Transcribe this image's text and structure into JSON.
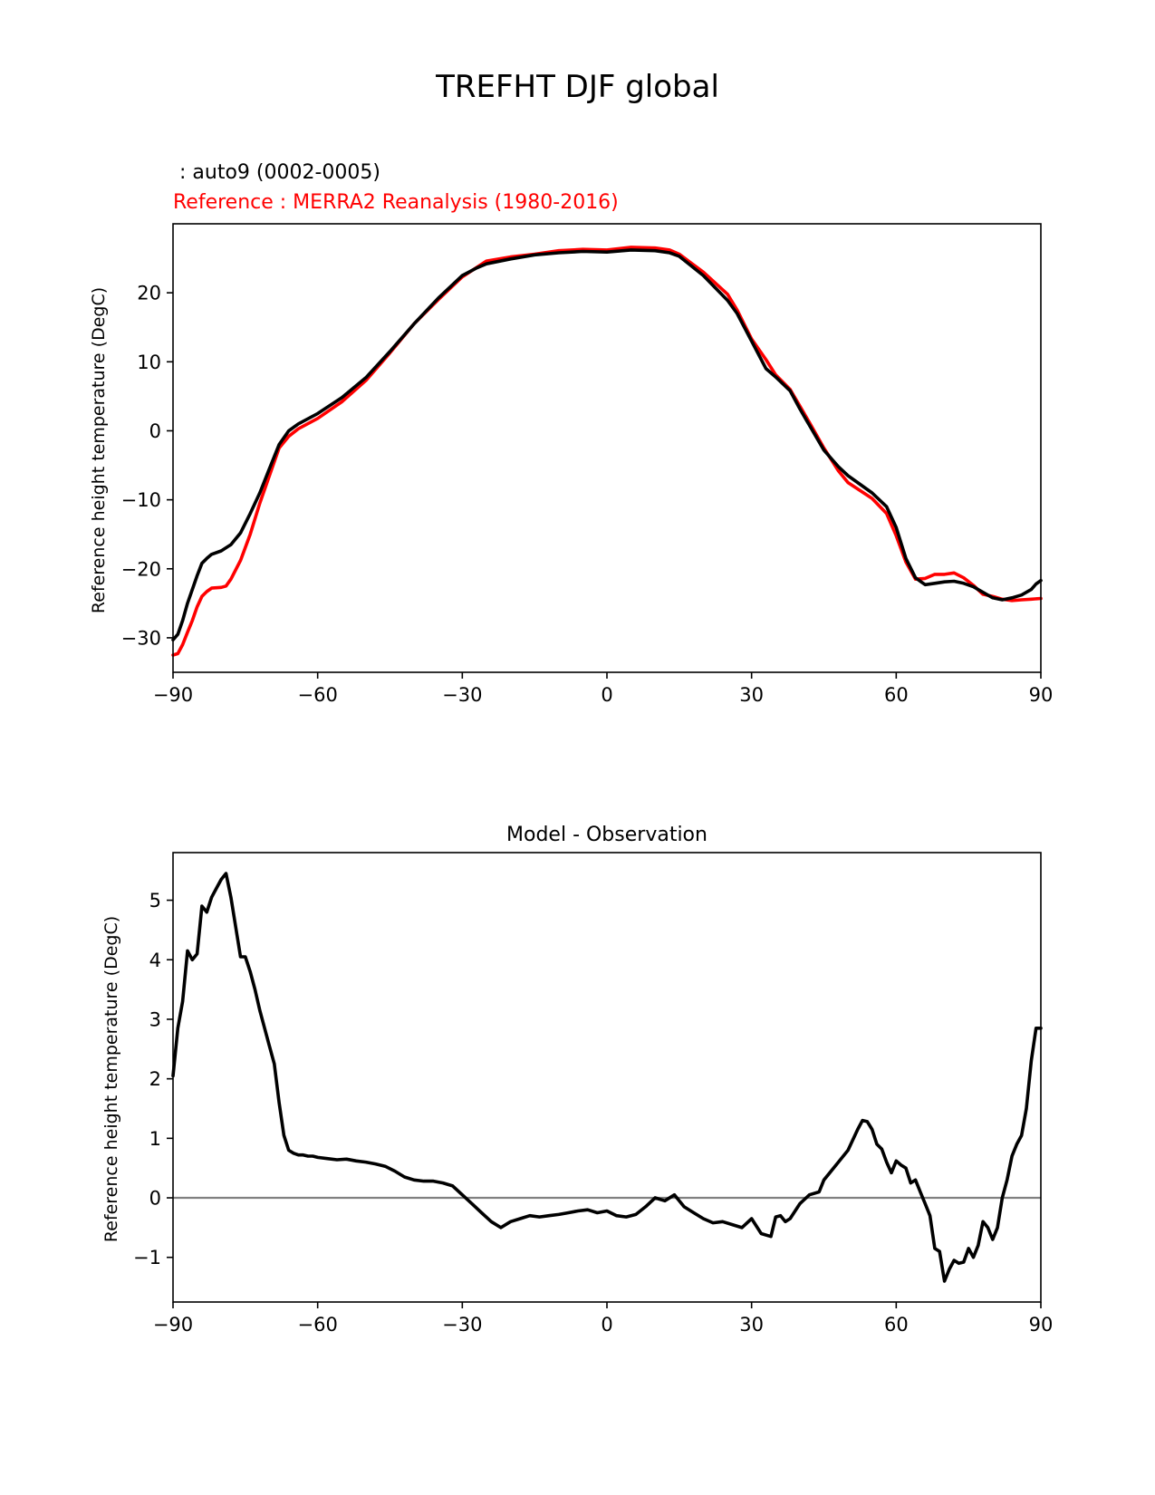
{
  "figure_title": "TREFHT DJF global",
  "colors": {
    "model": "#000000",
    "reference": "#ff0000",
    "zero_line": "#808080"
  },
  "chart_data": [
    {
      "type": "line",
      "title": "",
      "subtitle_model": " : auto9 (0002-0005)",
      "subtitle_reference": "Reference : MERRA2 Reanalysis (1980-2016)",
      "xlabel": "",
      "ylabel": "Reference height temperature (DegC)",
      "xlim": [
        -90,
        90
      ],
      "ylim": [
        -35,
        30
      ],
      "xticks": [
        -90,
        -60,
        -30,
        0,
        30,
        60,
        90
      ],
      "xtick_labels": [
        "−90",
        "−60",
        "−30",
        "0",
        "30",
        "60",
        "90"
      ],
      "yticks": [
        -30,
        -20,
        -10,
        0,
        10,
        20
      ],
      "ytick_labels": [
        "−30",
        "−20",
        "−10",
        "0",
        "10",
        "20"
      ],
      "grid": false,
      "series": [
        {
          "name": "auto9 (0002-0005)",
          "x": [
            -90,
            -89,
            -88,
            -87,
            -86,
            -85,
            -84,
            -83,
            -82,
            -80,
            -78,
            -76,
            -74,
            -72,
            -70,
            -68,
            -66,
            -64,
            -60,
            -55,
            -50,
            -45,
            -40,
            -35,
            -30,
            -27,
            -25,
            -20,
            -15,
            -10,
            -5,
            0,
            5,
            10,
            13,
            15,
            20,
            25,
            27,
            30,
            33,
            35,
            38,
            40,
            42,
            45,
            48,
            50,
            55,
            58,
            60,
            62,
            64,
            66,
            68,
            70,
            72,
            74,
            76,
            78,
            80,
            82,
            84,
            86,
            88,
            89,
            90
          ],
          "y": [
            -30.3,
            -29.5,
            -27.5,
            -25,
            -23,
            -21,
            -19.2,
            -18.5,
            -17.9,
            -17.4,
            -16.5,
            -14.8,
            -12,
            -9,
            -5.5,
            -2,
            0,
            1,
            2.5,
            4.8,
            7.7,
            11.5,
            15.5,
            19.2,
            22.5,
            23.6,
            24.2,
            24.9,
            25.5,
            25.8,
            26,
            25.9,
            26.2,
            26.1,
            25.8,
            25.3,
            22.5,
            18.9,
            17,
            13,
            9,
            7.8,
            5.8,
            3.2,
            0.8,
            -2.8,
            -5.2,
            -6.5,
            -9,
            -11,
            -14,
            -18.5,
            -21.3,
            -22.3,
            -22.1,
            -21.9,
            -21.8,
            -22.1,
            -22.6,
            -23.4,
            -24.2,
            -24.5,
            -24.2,
            -23.8,
            -23,
            -22.2,
            -21.7
          ]
        },
        {
          "name": "Reference : MERRA2 Reanalysis (1980-2016)",
          "x": [
            -90,
            -89,
            -88,
            -87,
            -86,
            -85,
            -84,
            -83,
            -82,
            -80,
            -79,
            -78,
            -76,
            -74,
            -72,
            -70,
            -68,
            -66,
            -64,
            -60,
            -55,
            -50,
            -45,
            -40,
            -35,
            -30,
            -25,
            -20,
            -15,
            -10,
            -5,
            0,
            5,
            10,
            13,
            15,
            20,
            25,
            27,
            30,
            33,
            35,
            38,
            40,
            42,
            45,
            48,
            50,
            55,
            58,
            60,
            62,
            64,
            66,
            68,
            70,
            72,
            74,
            76,
            78,
            80,
            82,
            84,
            86,
            88,
            90
          ],
          "y": [
            -32.5,
            -32.3,
            -31,
            -29.2,
            -27.5,
            -25.5,
            -24,
            -23.3,
            -22.8,
            -22.7,
            -22.5,
            -21.5,
            -18.8,
            -15,
            -10.5,
            -6.5,
            -2.5,
            -0.8,
            0.3,
            1.8,
            4.2,
            7.3,
            11.3,
            15.5,
            19,
            22.3,
            24.6,
            25.2,
            25.6,
            26.1,
            26.3,
            26.2,
            26.6,
            26.5,
            26.2,
            25.6,
            23,
            19.8,
            17.5,
            13.3,
            10.3,
            8.1,
            6,
            3.6,
            1.2,
            -2.5,
            -5.8,
            -7.5,
            -9.8,
            -12,
            -15.2,
            -19,
            -21.5,
            -21.4,
            -20.8,
            -20.8,
            -20.6,
            -21.3,
            -22.4,
            -23.7,
            -24,
            -24.4,
            -24.6,
            -24.5,
            -24.4,
            -24.3
          ]
        }
      ]
    },
    {
      "type": "line",
      "title": "Model - Observation",
      "xlabel": "",
      "ylabel": "Reference height temperature (DegC)",
      "xlim": [
        -90,
        90
      ],
      "ylim": [
        -1.75,
        5.8
      ],
      "xticks": [
        -90,
        -60,
        -30,
        0,
        30,
        60,
        90
      ],
      "xtick_labels": [
        "−90",
        "−60",
        "−30",
        "0",
        "30",
        "60",
        "90"
      ],
      "yticks": [
        -1,
        0,
        1,
        2,
        3,
        4,
        5
      ],
      "ytick_labels": [
        "−1",
        "0",
        "1",
        "2",
        "3",
        "4",
        "5"
      ],
      "grid": false,
      "reference_line": 0,
      "series": [
        {
          "name": "Model - Observation",
          "x": [
            -90,
            -89,
            -88,
            -87,
            -86,
            -85,
            -84,
            -83,
            -82,
            -81,
            -80,
            -79,
            -78,
            -77,
            -76,
            -75,
            -74,
            -73,
            -72,
            -71,
            -70,
            -69,
            -68,
            -67,
            -66,
            -65,
            -64,
            -63,
            -62,
            -61,
            -60,
            -58,
            -56,
            -54,
            -52,
            -50,
            -48,
            -46,
            -44,
            -42,
            -40,
            -38,
            -36,
            -34,
            -32,
            -30,
            -28,
            -26,
            -24,
            -22,
            -20,
            -18,
            -16,
            -14,
            -12,
            -10,
            -8,
            -6,
            -4,
            -2,
            0,
            2,
            4,
            6,
            8,
            10,
            12,
            14,
            16,
            18,
            20,
            22,
            24,
            26,
            28,
            30,
            32,
            34,
            35,
            36,
            37,
            38,
            40,
            42,
            44,
            45,
            46,
            48,
            50,
            52,
            53,
            54,
            55,
            56,
            57,
            58,
            59,
            60,
            61,
            62,
            63,
            64,
            65,
            66,
            67,
            68,
            69,
            70,
            71,
            72,
            73,
            74,
            75,
            76,
            77,
            78,
            79,
            80,
            81,
            82,
            83,
            84,
            85,
            86,
            87,
            88,
            89,
            90
          ],
          "y": [
            2.05,
            2.85,
            3.3,
            4.15,
            4,
            4.1,
            4.9,
            4.8,
            5.05,
            5.2,
            5.35,
            5.45,
            5.05,
            4.55,
            4.05,
            4.05,
            3.8,
            3.5,
            3.15,
            2.85,
            2.55,
            2.25,
            1.6,
            1.05,
            0.8,
            0.75,
            0.72,
            0.72,
            0.7,
            0.7,
            0.68,
            0.66,
            0.64,
            0.65,
            0.62,
            0.6,
            0.57,
            0.53,
            0.45,
            0.35,
            0.3,
            0.28,
            0.28,
            0.25,
            0.2,
            0.05,
            -0.1,
            -0.25,
            -0.4,
            -0.5,
            -0.4,
            -0.35,
            -0.3,
            -0.32,
            -0.3,
            -0.28,
            -0.25,
            -0.22,
            -0.2,
            -0.25,
            -0.22,
            -0.3,
            -0.32,
            -0.28,
            -0.15,
            0,
            -0.05,
            0.05,
            -0.15,
            -0.25,
            -0.35,
            -0.42,
            -0.4,
            -0.45,
            -0.5,
            -0.35,
            -0.6,
            -0.65,
            -0.32,
            -0.3,
            -0.4,
            -0.35,
            -0.1,
            0.05,
            0.1,
            0.3,
            0.4,
            0.6,
            0.8,
            1.15,
            1.3,
            1.28,
            1.15,
            0.9,
            0.82,
            0.6,
            0.42,
            0.62,
            0.55,
            0.5,
            0.25,
            0.3,
            0.1,
            -0.1,
            -0.3,
            -0.85,
            -0.9,
            -1.4,
            -1.2,
            -1.05,
            -1.1,
            -1.08,
            -0.85,
            -1,
            -0.8,
            -0.4,
            -0.5,
            -0.7,
            -0.5,
            0,
            0.3,
            0.7,
            0.9,
            1.05,
            1.5,
            2.3,
            2.85,
            2.85
          ]
        }
      ]
    }
  ]
}
